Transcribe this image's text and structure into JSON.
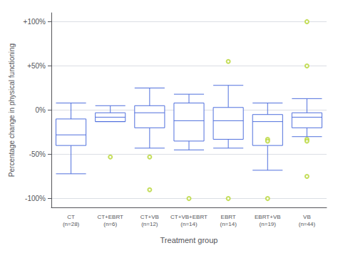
{
  "chart_data": {
    "type": "boxplot",
    "xlabel": "Treatment group",
    "ylabel": "Percentage change in physical functioning",
    "categories": [
      "CT\n(n=28)",
      "CT+EBRT\n(n=6)",
      "CT+VB\n(n=12)",
      "CT+VB+EBRT\n(n=14)",
      "EBRT\n(n=14)",
      "EBRT+VB\n(n=19)",
      "VB\n(n=44)"
    ],
    "boxes": [
      {
        "q1": -40,
        "median": -28,
        "q3": -10,
        "whislo": -72,
        "whishi": 8,
        "fliers": []
      },
      {
        "q1": -13,
        "median": -8,
        "q3": -3,
        "whislo": -13,
        "whishi": 5,
        "fliers": [
          -53
        ]
      },
      {
        "q1": -20,
        "median": -3,
        "q3": 5,
        "whislo": -43,
        "whishi": 25,
        "fliers": [
          -53,
          -90
        ]
      },
      {
        "q1": -35,
        "median": -12,
        "q3": 8,
        "whislo": -45,
        "whishi": 18,
        "fliers": [
          -100
        ]
      },
      {
        "q1": -33,
        "median": -12,
        "q3": 3,
        "whislo": -43,
        "whishi": 28,
        "fliers": [
          55,
          -100
        ]
      },
      {
        "q1": -40,
        "median": -13,
        "q3": -5,
        "whislo": -68,
        "whishi": 8,
        "fliers": [
          -100,
          -33,
          -35
        ]
      },
      {
        "q1": -20,
        "median": -8,
        "q3": -3,
        "whislo": -30,
        "whishi": 13,
        "fliers": [
          100,
          50,
          -75,
          -33,
          -35
        ]
      }
    ],
    "ylim": [
      -110,
      110
    ],
    "yticks": [
      {
        "value": -100,
        "label": "-100%"
      },
      {
        "value": -50,
        "label": "-50%"
      },
      {
        "value": 0,
        "label": "0%"
      },
      {
        "value": 50,
        "label": "+50%"
      },
      {
        "value": 100,
        "label": "+100%"
      }
    ],
    "grid": true
  }
}
